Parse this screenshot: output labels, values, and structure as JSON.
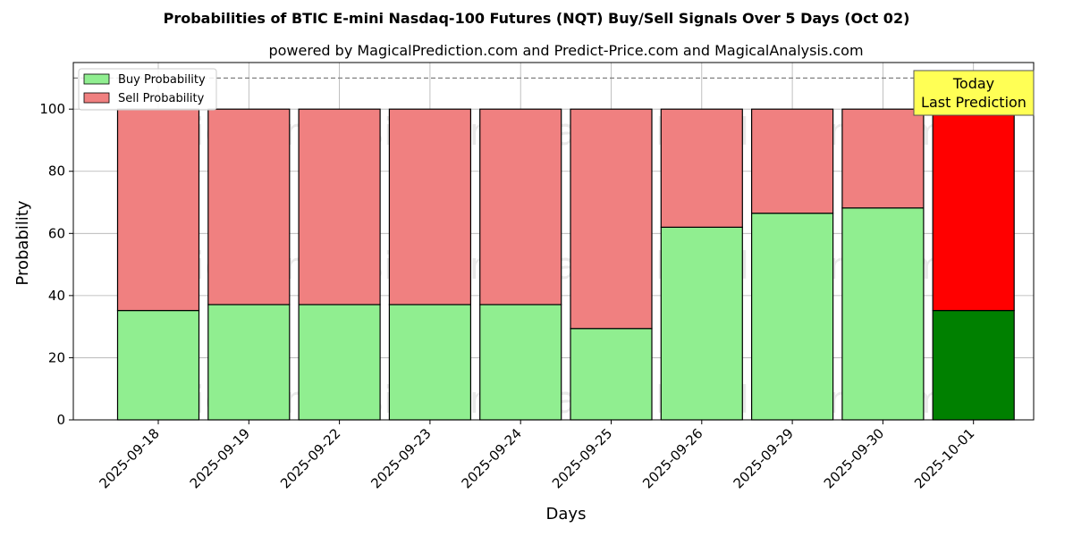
{
  "chart_data": {
    "type": "bar",
    "stacked": true,
    "title": "Probabilities of BTIC E-mini Nasdaq-100 Futures (NQT) Buy/Sell Signals Over 5 Days (Oct 02)",
    "subtitle": "powered by MagicalPrediction.com and Predict-Price.com and MagicalAnalysis.com",
    "xlabel": "Days",
    "ylabel": "Probability",
    "ylim": [
      0,
      115
    ],
    "yticks": [
      0,
      20,
      40,
      60,
      80,
      100
    ],
    "reference_line": 110,
    "grid": true,
    "legend_position": "top-left",
    "categories": [
      "2025-09-18",
      "2025-09-19",
      "2025-09-22",
      "2025-09-23",
      "2025-09-24",
      "2025-09-25",
      "2025-09-26",
      "2025-09-29",
      "2025-09-30",
      "2025-10-01"
    ],
    "series": [
      {
        "name": "Buy Probability",
        "color": "#90ee90",
        "highlight_color": "#008000",
        "values": [
          35.2,
          37.1,
          37.1,
          37.1,
          37.1,
          29.4,
          62.0,
          66.5,
          68.2,
          35.2
        ]
      },
      {
        "name": "Sell Probability",
        "color": "#f08080",
        "highlight_color": "#ff0000",
        "values": [
          64.8,
          62.9,
          62.9,
          62.9,
          62.9,
          70.6,
          38.0,
          33.5,
          31.8,
          64.8
        ]
      }
    ],
    "highlight_index": 9,
    "annotation": {
      "line1": "Today",
      "line2": "Last Prediction",
      "bg_color": "#ffff55"
    },
    "watermarks": [
      "MagicalAnalysis.com",
      "MagicalPrediction.com"
    ]
  }
}
